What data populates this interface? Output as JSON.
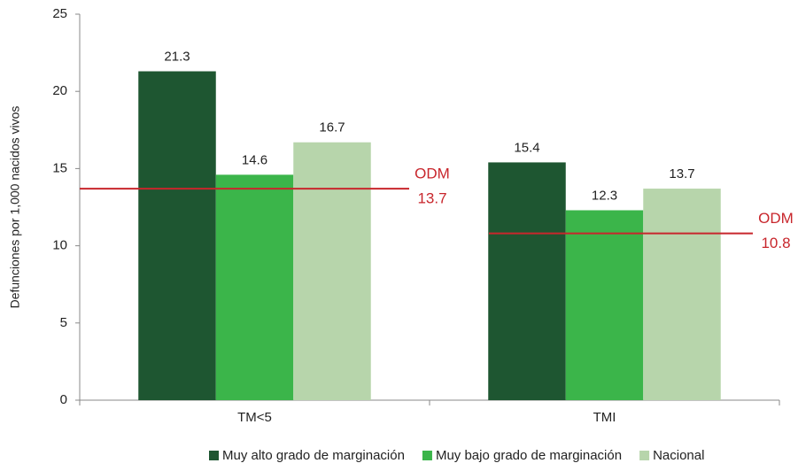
{
  "chart_data": {
    "type": "bar",
    "y_axis_label": "Defunciones por 1,000 nacidos vivos",
    "categories": [
      "TM<5",
      "TMI"
    ],
    "series": [
      {
        "name": "Muy alto grado de marginación",
        "color": "#1e5631",
        "values": [
          21.3,
          15.4
        ]
      },
      {
        "name": "Muy bajo grado de marginación",
        "color": "#3bb54a",
        "values": [
          14.6,
          12.3
        ]
      },
      {
        "name": "Nacional",
        "color": "#b7d5ab",
        "values": [
          16.7,
          13.7
        ]
      }
    ],
    "reference_lines": [
      {
        "label": "ODM",
        "value": 13.7,
        "color": "#c8262c",
        "category": 0
      },
      {
        "label": "ODM",
        "value": 10.8,
        "color": "#c8262c",
        "category": 1
      }
    ],
    "ylim": [
      0,
      25
    ],
    "yticks": [
      0,
      5,
      10,
      15,
      20,
      25
    ],
    "grid": false,
    "legend": "bottom"
  }
}
